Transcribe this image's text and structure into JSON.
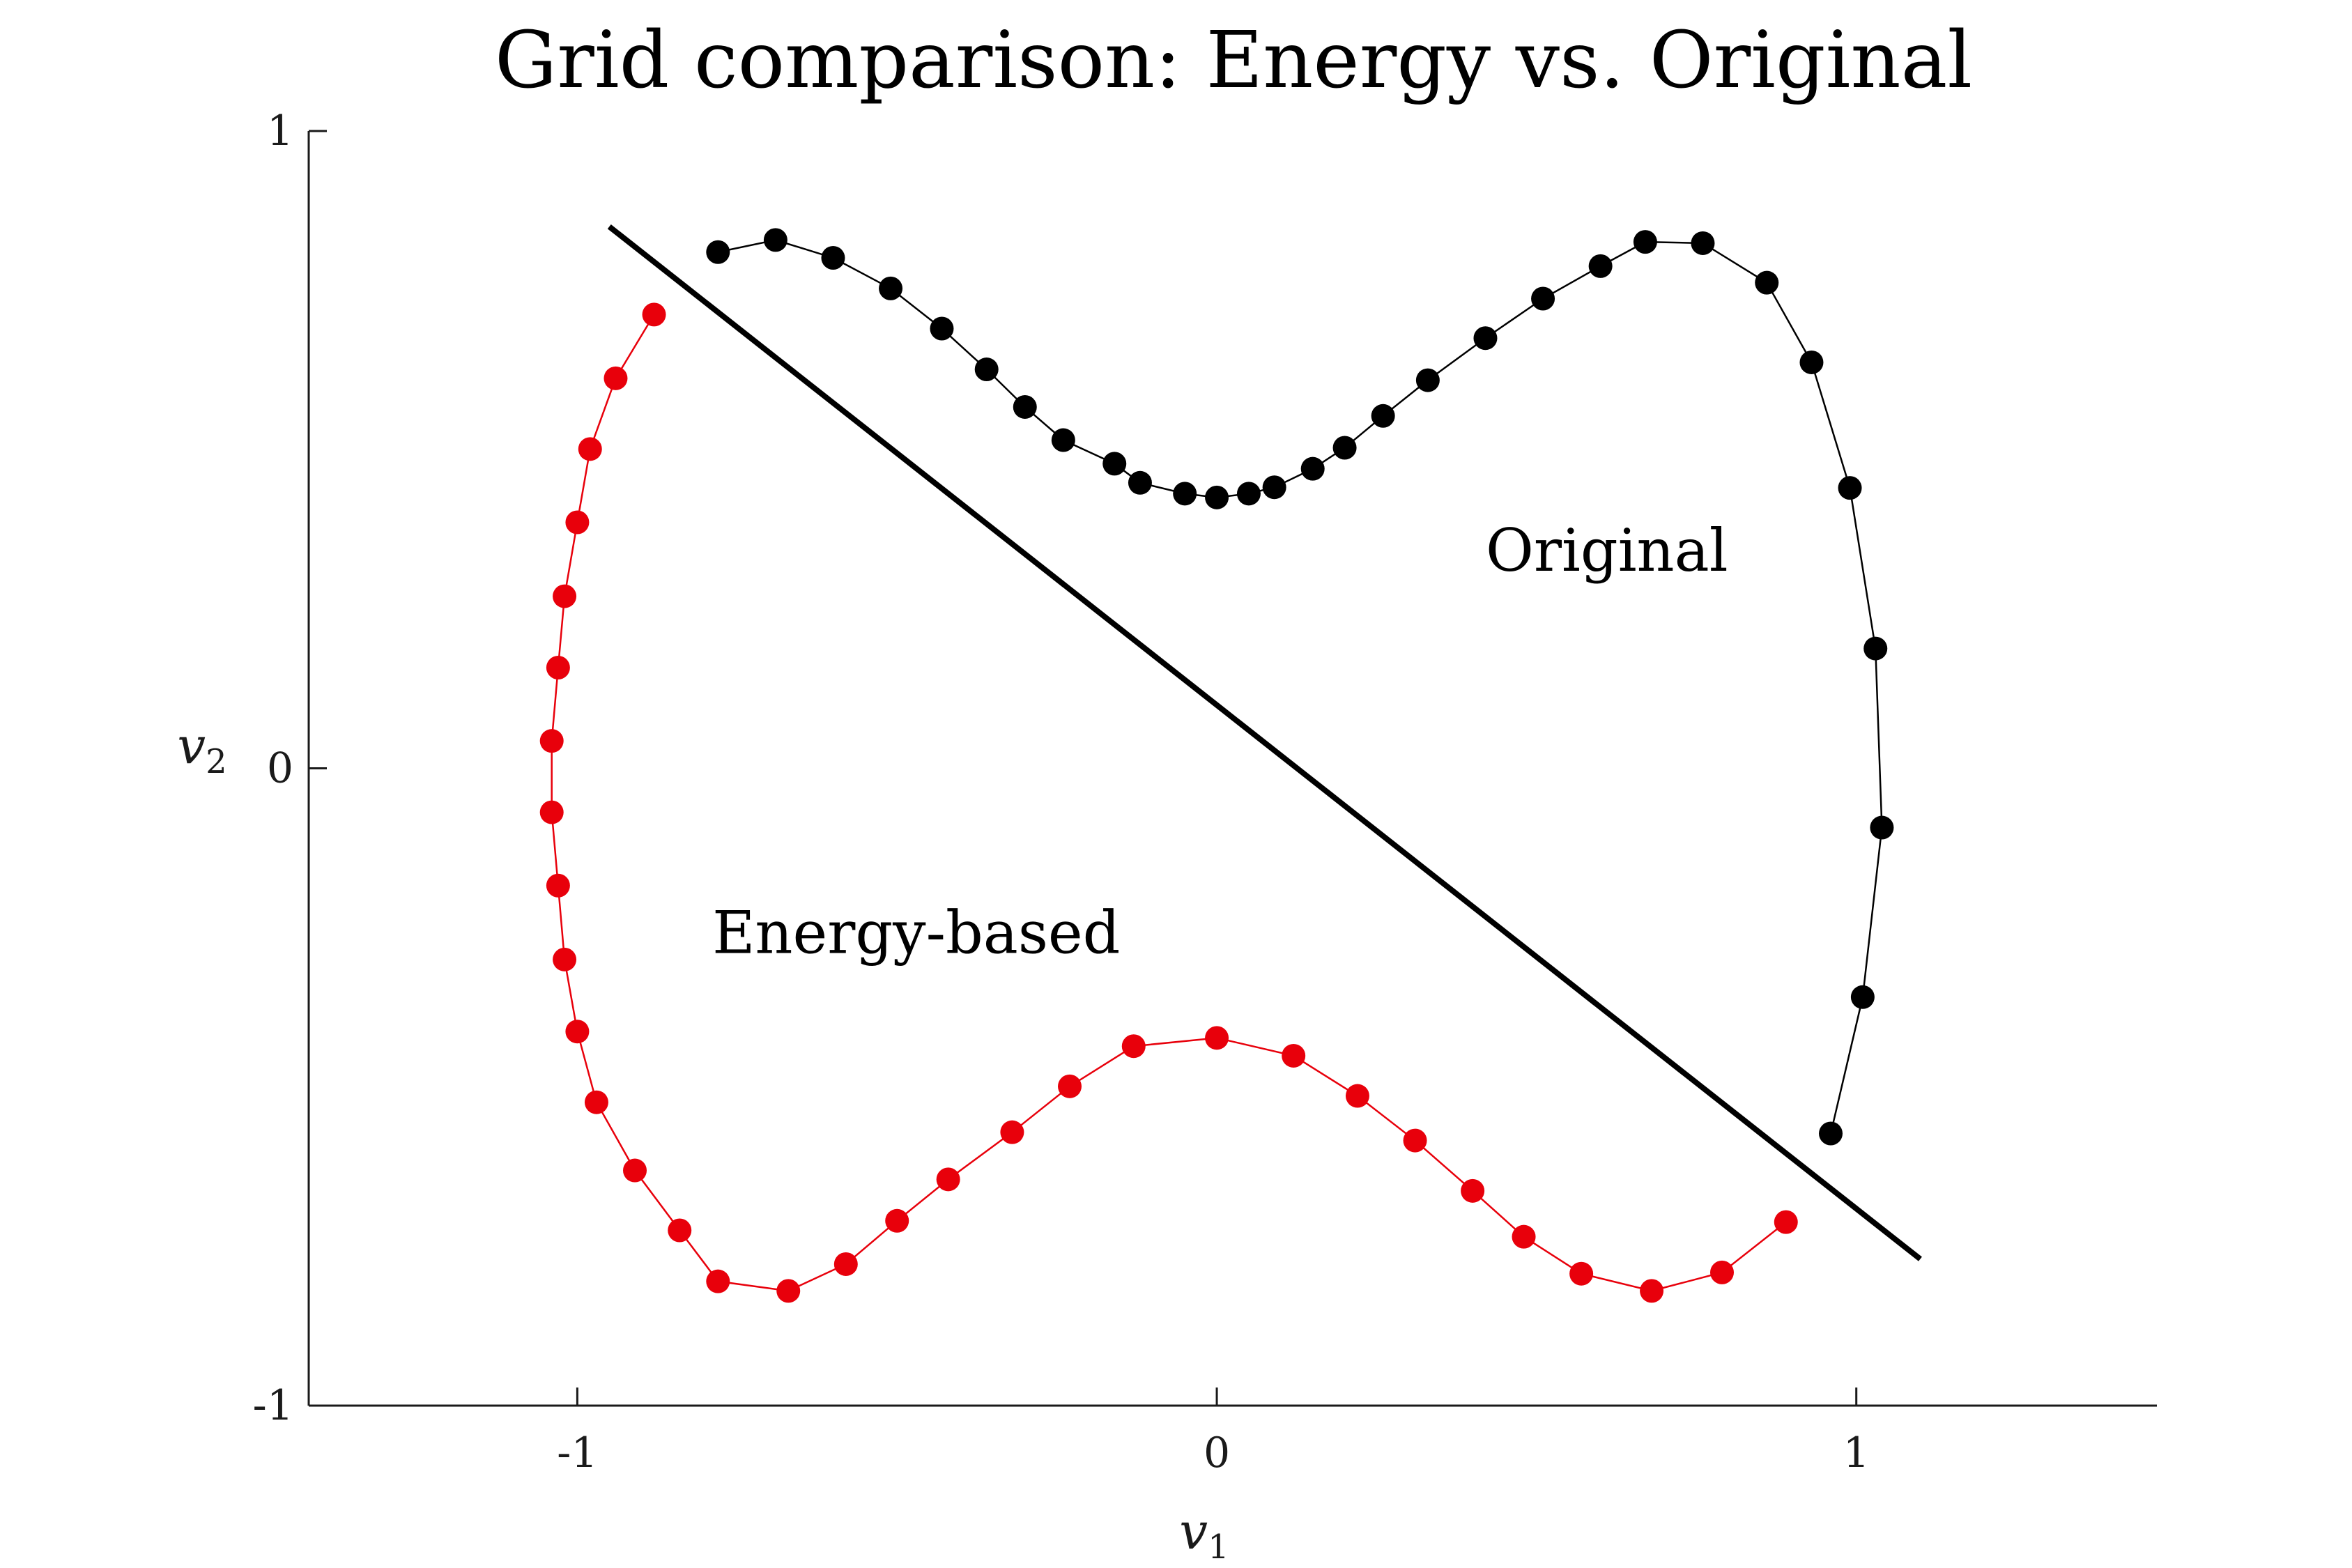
{
  "chart_data": {
    "type": "scatter",
    "title": "Grid comparison: Energy vs. Original",
    "xlabel": {
      "symbol": "v",
      "subscript": "1"
    },
    "ylabel": {
      "symbol": "v",
      "subscript": "2"
    },
    "xlim": [
      -1.42,
      1.47
    ],
    "ylim": [
      -1,
      1
    ],
    "xticks": [
      -1,
      0,
      1
    ],
    "yticks": [
      -1,
      0,
      1
    ],
    "xtick_labels": [
      "-1",
      "0",
      "1"
    ],
    "ytick_labels": [
      "-1",
      "0",
      "1"
    ],
    "grid": false,
    "annotations": [
      {
        "text": "Original",
        "x": 0.61,
        "y": 0.31
      },
      {
        "text": "Energy-based",
        "x": -0.47,
        "y": -0.29
      }
    ],
    "line": {
      "name": "separator",
      "color": "#000000",
      "points": [
        [
          -0.95,
          0.85
        ],
        [
          1.1,
          -0.77
        ]
      ]
    },
    "series": [
      {
        "name": "Original",
        "color": "#000000",
        "points": [
          [
            -0.78,
            0.81
          ],
          [
            -0.69,
            0.829
          ],
          [
            -0.6,
            0.801
          ],
          [
            -0.51,
            0.753
          ],
          [
            -0.43,
            0.69
          ],
          [
            -0.36,
            0.626
          ],
          [
            -0.3,
            0.567
          ],
          [
            -0.24,
            0.515
          ],
          [
            -0.16,
            0.478
          ],
          [
            -0.12,
            0.448
          ],
          [
            -0.05,
            0.431
          ],
          [
            0.0,
            0.425
          ],
          [
            0.05,
            0.431
          ],
          [
            0.09,
            0.441
          ],
          [
            0.15,
            0.47
          ],
          [
            0.2,
            0.503
          ],
          [
            0.26,
            0.553
          ],
          [
            0.33,
            0.609
          ],
          [
            0.42,
            0.675
          ],
          [
            0.51,
            0.737
          ],
          [
            0.6,
            0.788
          ],
          [
            0.67,
            0.826
          ],
          [
            0.76,
            0.824
          ],
          [
            0.86,
            0.762
          ],
          [
            0.93,
            0.637
          ],
          [
            0.99,
            0.44
          ],
          [
            1.03,
            0.188
          ],
          [
            1.04,
            -0.093
          ],
          [
            1.01,
            -0.359
          ],
          [
            0.96,
            -0.573
          ]
        ]
      },
      {
        "name": "Energy-based",
        "color": "#e8000b",
        "points": [
          [
            -0.88,
            0.712
          ],
          [
            -0.94,
            0.612
          ],
          [
            -0.98,
            0.501
          ],
          [
            -1.0,
            0.386
          ],
          [
            -1.02,
            0.27
          ],
          [
            -1.03,
            0.158
          ],
          [
            -1.04,
            0.043
          ],
          [
            -1.04,
            -0.069
          ],
          [
            -1.03,
            -0.184
          ],
          [
            -1.02,
            -0.3
          ],
          [
            -1.0,
            -0.413
          ],
          [
            -0.97,
            -0.524
          ],
          [
            -0.91,
            -0.631
          ],
          [
            -0.84,
            -0.725
          ],
          [
            -0.78,
            -0.805
          ],
          [
            -0.67,
            -0.82
          ],
          [
            -0.58,
            -0.778
          ],
          [
            -0.5,
            -0.71
          ],
          [
            -0.42,
            -0.645
          ],
          [
            -0.32,
            -0.571
          ],
          [
            -0.23,
            -0.499
          ],
          [
            -0.13,
            -0.436
          ],
          [
            0.0,
            -0.423
          ],
          [
            0.12,
            -0.451
          ],
          [
            0.22,
            -0.514
          ],
          [
            0.31,
            -0.584
          ],
          [
            0.4,
            -0.663
          ],
          [
            0.48,
            -0.735
          ],
          [
            0.57,
            -0.793
          ],
          [
            0.68,
            -0.82
          ],
          [
            0.79,
            -0.791
          ],
          [
            0.89,
            -0.712
          ]
        ]
      }
    ]
  }
}
